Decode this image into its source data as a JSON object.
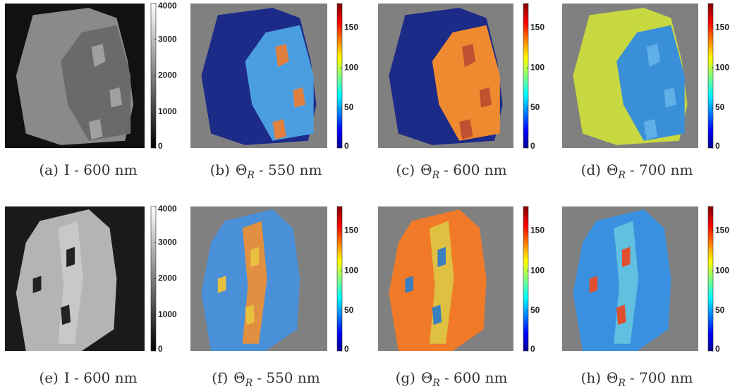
{
  "panels": [
    {
      "label": "(a)",
      "caption": "I - 600 nm",
      "colormap": "gray",
      "colorbar": {
        "lim": [
          0,
          4000
        ],
        "ticks": [
          0,
          1000,
          2000,
          3000,
          4000
        ]
      }
    },
    {
      "label": "(b)",
      "symbol": "Θ",
      "subscript": "R",
      "caption": "- 550 nm",
      "colormap": "jet",
      "colorbar": {
        "lim": [
          0,
          180
        ],
        "ticks": [
          0,
          50,
          100,
          150
        ]
      }
    },
    {
      "label": "(c)",
      "symbol": "Θ",
      "subscript": "R",
      "caption": "- 600 nm",
      "colormap": "jet",
      "colorbar": {
        "lim": [
          0,
          180
        ],
        "ticks": [
          0,
          50,
          100,
          150
        ]
      }
    },
    {
      "label": "(d)",
      "symbol": "Θ",
      "subscript": "R",
      "caption": "- 700 nm",
      "colormap": "jet",
      "colorbar": {
        "lim": [
          0,
          180
        ],
        "ticks": [
          0,
          50,
          100,
          150
        ]
      }
    },
    {
      "label": "(e)",
      "caption": "I - 600 nm",
      "colormap": "gray",
      "colorbar": {
        "lim": [
          0,
          4000
        ],
        "ticks": [
          0,
          1000,
          2000,
          3000,
          4000
        ]
      }
    },
    {
      "label": "(f)",
      "symbol": "Θ",
      "subscript": "R",
      "caption": "- 550 nm",
      "colormap": "jet",
      "colorbar": {
        "lim": [
          0,
          180
        ],
        "ticks": [
          0,
          50,
          100,
          150
        ]
      }
    },
    {
      "label": "(g)",
      "symbol": "Θ",
      "subscript": "R",
      "caption": "- 600 nm",
      "colormap": "jet",
      "colorbar": {
        "lim": [
          0,
          180
        ],
        "ticks": [
          0,
          50,
          100,
          150
        ]
      }
    },
    {
      "label": "(h)",
      "symbol": "Θ",
      "subscript": "R",
      "caption": "- 700 nm",
      "colormap": "jet",
      "colorbar": {
        "lim": [
          0,
          180
        ],
        "ticks": [
          0,
          50,
          100,
          150
        ]
      }
    }
  ]
}
